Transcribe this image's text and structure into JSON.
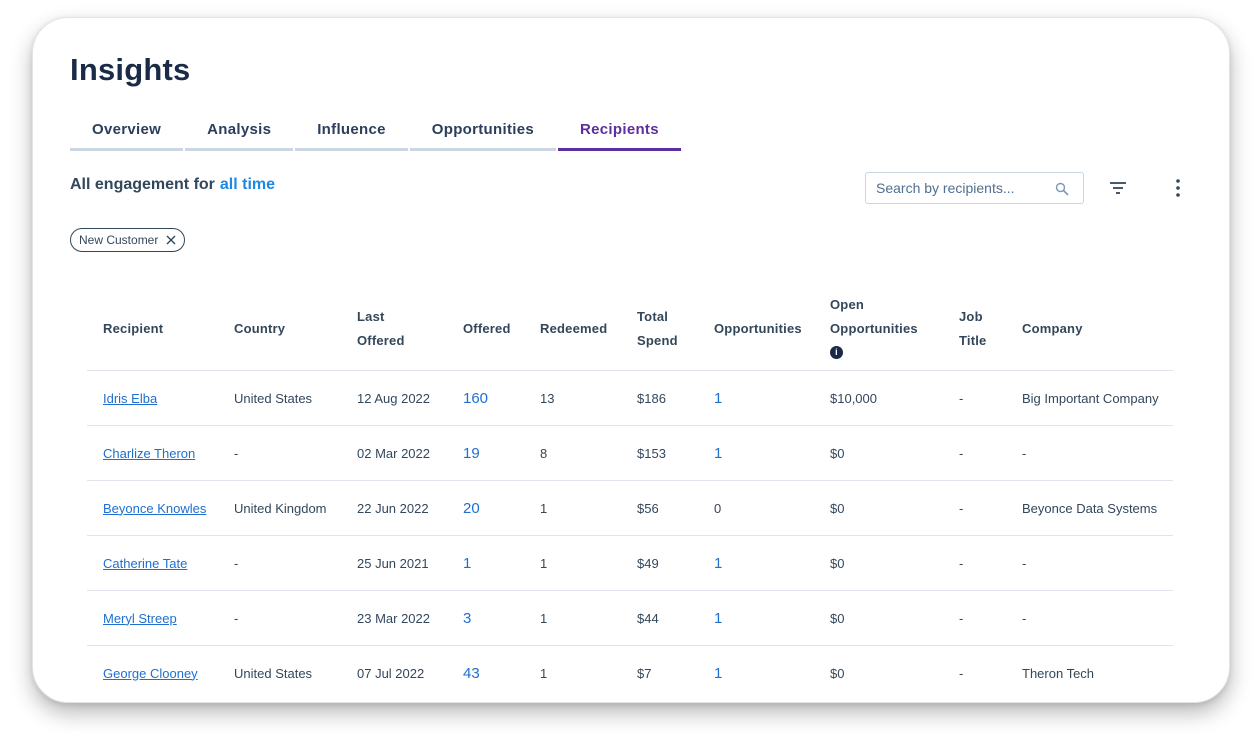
{
  "page": {
    "title": "Insights"
  },
  "tabs": [
    {
      "label": "Overview",
      "active": false
    },
    {
      "label": "Analysis",
      "active": false
    },
    {
      "label": "Influence",
      "active": false
    },
    {
      "label": "Opportunities",
      "active": false
    },
    {
      "label": "Recipients",
      "active": true
    }
  ],
  "engagement": {
    "prefix": "All engagement for",
    "range": "all time"
  },
  "search": {
    "placeholder": "Search by recipients..."
  },
  "filter_chip": {
    "label": "New Customer"
  },
  "table": {
    "headers": {
      "recipient": "Recipient",
      "country": "Country",
      "last_offered_1": "Last",
      "last_offered_2": "Offered",
      "offered": "Offered",
      "redeemed": "Redeemed",
      "total_spend_1": "Total",
      "total_spend_2": "Spend",
      "opportunities": "Opportunities",
      "open_opps_1": "Open",
      "open_opps_2": "Opportunities",
      "job_title_1": "Job",
      "job_title_2": "Title",
      "company": "Company"
    },
    "rows": [
      {
        "recipient": "Idris Elba",
        "country": "United States",
        "last_offered": "12 Aug 2022",
        "offered": "160",
        "redeemed": "13",
        "total_spend": "$186",
        "opportunities": "1",
        "opportunities_link": true,
        "open_opportunities": "$10,000",
        "job_title": "-",
        "company": "Big Important Company"
      },
      {
        "recipient": "Charlize Theron",
        "country": "-",
        "last_offered": "02 Mar 2022",
        "offered": "19",
        "redeemed": "8",
        "total_spend": "$153",
        "opportunities": "1",
        "opportunities_link": true,
        "open_opportunities": "$0",
        "job_title": "-",
        "company": "-"
      },
      {
        "recipient": "Beyonce Knowles",
        "country": "United Kingdom",
        "last_offered": "22 Jun 2022",
        "offered": "20",
        "redeemed": "1",
        "total_spend": "$56",
        "opportunities": "0",
        "opportunities_link": false,
        "open_opportunities": "$0",
        "job_title": "-",
        "company": "Beyonce Data Systems"
      },
      {
        "recipient": "Catherine Tate",
        "country": "-",
        "last_offered": "25 Jun 2021",
        "offered": "1",
        "redeemed": "1",
        "total_spend": "$49",
        "opportunities": "1",
        "opportunities_link": true,
        "open_opportunities": "$0",
        "job_title": "-",
        "company": "-"
      },
      {
        "recipient": "Meryl Streep",
        "country": "-",
        "last_offered": "23 Mar 2022",
        "offered": "3",
        "redeemed": "1",
        "total_spend": "$44",
        "opportunities": "1",
        "opportunities_link": true,
        "open_opportunities": "$0",
        "job_title": "-",
        "company": "-"
      },
      {
        "recipient": "George Clooney",
        "country": "United States",
        "last_offered": "07 Jul 2022",
        "offered": "43",
        "redeemed": "1",
        "total_spend": "$7",
        "opportunities": "1",
        "opportunities_link": true,
        "open_opportunities": "$0",
        "job_title": "-",
        "company": "Theron Tech"
      }
    ]
  },
  "colors": {
    "primary_text": "#33475b",
    "title": "#1b2a47",
    "accent_purple": "#5c2f9e",
    "link_blue": "#1e6fd0",
    "range_blue": "#1e88e5"
  },
  "icons": [
    "search-icon",
    "filter-icon",
    "more-options-icon",
    "close-icon",
    "info-icon"
  ]
}
